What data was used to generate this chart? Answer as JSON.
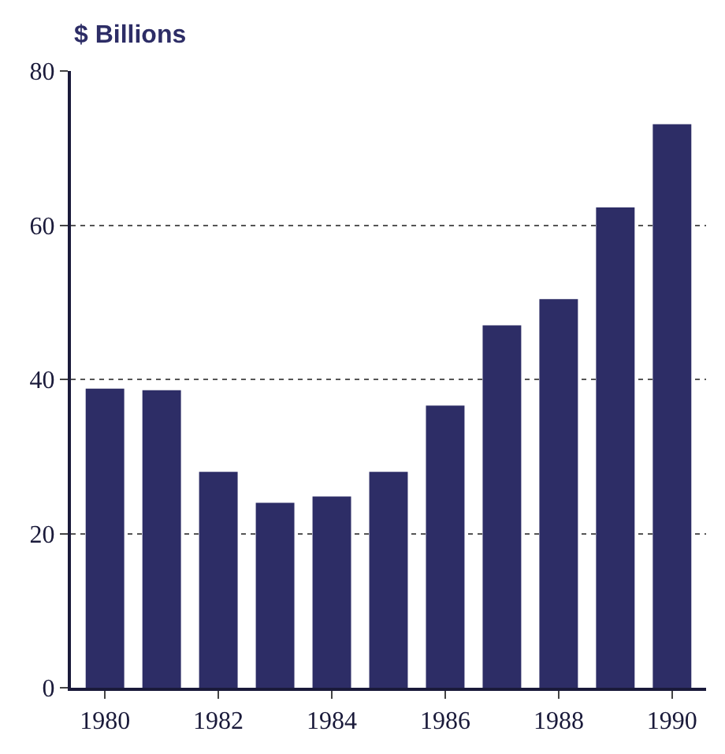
{
  "chart_data": {
    "type": "bar",
    "ylabel": "$ Billions",
    "categories": [
      "1980",
      null,
      "1982",
      null,
      "1984",
      null,
      "1986",
      null,
      "1988",
      null,
      "1990"
    ],
    "values": [
      38.8,
      38.6,
      28,
      24,
      24.8,
      28,
      36.6,
      47,
      50.4,
      62.3,
      73.1
    ],
    "color": "#2d2d66",
    "ylim": [
      0,
      80
    ],
    "yticks": [
      0,
      20,
      40,
      60,
      80
    ],
    "grid": "y"
  }
}
